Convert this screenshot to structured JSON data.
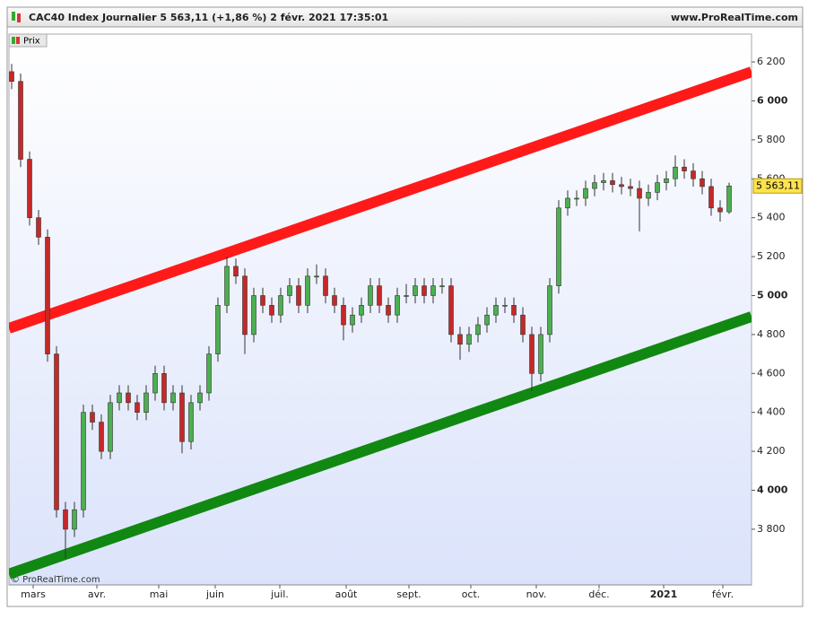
{
  "chart_data": {
    "type": "candlestick",
    "title": "CAC40 Index Journalier 5 563,11 (+1,86 %) 2 févr. 2021 17:35:01",
    "source": "www.ProRealTime.com",
    "watermark": "© ProRealTime.com",
    "legend": "Prix",
    "last_price_label": "5 563,11",
    "up_color": "#4caf50",
    "down_color": "#c62828",
    "open": [
      6150,
      6100,
      5700,
      5400,
      5300,
      4700,
      3900,
      3800,
      3900,
      4400,
      4350,
      4200,
      4450,
      4500,
      4450,
      4400,
      4500,
      4600,
      4450,
      4500,
      4250,
      4450,
      4500,
      4700,
      4950,
      5150,
      5100,
      4800,
      5000,
      4950,
      4900,
      5000,
      5050,
      4950,
      5100,
      5100,
      5000,
      4950,
      4850,
      4900,
      4950,
      5050,
      4950,
      4900,
      5000,
      5000,
      5050,
      5000,
      5050,
      5050,
      4800,
      4750,
      4800,
      4850,
      4900,
      4950,
      4950,
      4900,
      4800,
      4600,
      4800,
      5050,
      5450,
      5500,
      5500,
      5550,
      5580,
      5590,
      5570,
      5560,
      5550,
      5500,
      5530,
      5580,
      5600,
      5660,
      5640,
      5600,
      5560,
      5450,
      5430
    ],
    "high": [
      6190,
      6140,
      5740,
      5440,
      5340,
      4740,
      3940,
      3940,
      4440,
      4440,
      4390,
      4490,
      4540,
      4540,
      4490,
      4540,
      4640,
      4640,
      4540,
      4540,
      4490,
      4540,
      4740,
      4990,
      5200,
      5190,
      5140,
      5040,
      5040,
      4990,
      5040,
      5090,
      5090,
      5140,
      5160,
      5140,
      5040,
      4990,
      4940,
      4990,
      5090,
      5090,
      4990,
      5040,
      5060,
      5090,
      5090,
      5090,
      5090,
      5090,
      4840,
      4840,
      4890,
      4940,
      4990,
      4990,
      4990,
      4940,
      4840,
      4840,
      5090,
      5490,
      5540,
      5540,
      5590,
      5620,
      5630,
      5630,
      5610,
      5600,
      5590,
      5570,
      5620,
      5640,
      5720,
      5700,
      5680,
      5640,
      5600,
      5490,
      5580
    ],
    "low": [
      6060,
      5660,
      5360,
      5260,
      4660,
      3860,
      3650,
      3760,
      3860,
      4310,
      4160,
      4160,
      4410,
      4410,
      4360,
      4360,
      4460,
      4410,
      4410,
      4190,
      4210,
      4410,
      4460,
      4660,
      4910,
      5060,
      4700,
      4760,
      4910,
      4860,
      4860,
      4960,
      4910,
      4910,
      5060,
      4960,
      4910,
      4770,
      4810,
      4860,
      4910,
      4910,
      4860,
      4860,
      4960,
      4960,
      4960,
      4960,
      5010,
      4760,
      4670,
      4710,
      4760,
      4810,
      4860,
      4910,
      4860,
      4760,
      4510,
      4560,
      4760,
      5010,
      5410,
      5460,
      5460,
      5510,
      5540,
      5530,
      5520,
      5510,
      5330,
      5460,
      5490,
      5540,
      5560,
      5600,
      5560,
      5520,
      5410,
      5380,
      5420
    ],
    "close": [
      6100,
      5700,
      5400,
      5300,
      4700,
      3900,
      3800,
      3900,
      4400,
      4350,
      4200,
      4450,
      4500,
      4450,
      4400,
      4500,
      4600,
      4450,
      4500,
      4250,
      4450,
      4500,
      4700,
      4950,
      5150,
      5100,
      4800,
      5000,
      4950,
      4900,
      5000,
      5050,
      4950,
      5100,
      5100,
      5000,
      4950,
      4850,
      4900,
      4950,
      5050,
      4950,
      4900,
      5000,
      5000,
      5050,
      5000,
      5050,
      5050,
      4800,
      4750,
      4800,
      4850,
      4900,
      4950,
      4950,
      4900,
      4800,
      4600,
      4800,
      5050,
      5450,
      5500,
      5500,
      5550,
      5580,
      5590,
      5570,
      5560,
      5550,
      5500,
      5530,
      5580,
      5600,
      5660,
      5640,
      5600,
      5560,
      5450,
      5430,
      5563.11
    ],
    "trendlines": [
      {
        "color": "#ff1a1a",
        "x": [
          -0.3,
          82.5
        ],
        "y": [
          4832,
          6149
        ]
      },
      {
        "color": "#118811",
        "x": [
          -0.3,
          82.5
        ],
        "y": [
          3570,
          4892
        ]
      }
    ],
    "xlim": [
      -0.3,
      82.5
    ],
    "xticks": [
      {
        "value": 2.4,
        "label": "mars"
      },
      {
        "value": 9.5,
        "label": "avr."
      },
      {
        "value": 16.4,
        "label": "mai"
      },
      {
        "value": 22.7,
        "label": "juin"
      },
      {
        "value": 29.9,
        "label": "juil."
      },
      {
        "value": 37.3,
        "label": "août"
      },
      {
        "value": 44.3,
        "label": "sept."
      },
      {
        "value": 51.2,
        "label": "oct."
      },
      {
        "value": 58.5,
        "label": "nov."
      },
      {
        "value": 65.5,
        "label": "déc."
      },
      {
        "value": 72.7,
        "label": "2021"
      },
      {
        "value": 79.3,
        "label": "févr."
      }
    ],
    "ylim": [
      3514,
      6343
    ],
    "yticks": [
      {
        "value": 3800,
        "label": "3 800"
      },
      {
        "value": 4000,
        "label": "4 000"
      },
      {
        "value": 4200,
        "label": "4 200"
      },
      {
        "value": 4400,
        "label": "4 400"
      },
      {
        "value": 4600,
        "label": "4 600"
      },
      {
        "value": 4800,
        "label": "4 800"
      },
      {
        "value": 5000,
        "label": "5 000"
      },
      {
        "value": 5200,
        "label": "5 200"
      },
      {
        "value": 5400,
        "label": "5 400"
      },
      {
        "value": 5600,
        "label": "5 600"
      },
      {
        "value": 5800,
        "label": "5 800"
      },
      {
        "value": 6000,
        "label": "6 000"
      },
      {
        "value": 6200,
        "label": "6 200"
      }
    ],
    "bold_yticks": [
      4000,
      5000,
      6000
    ]
  }
}
